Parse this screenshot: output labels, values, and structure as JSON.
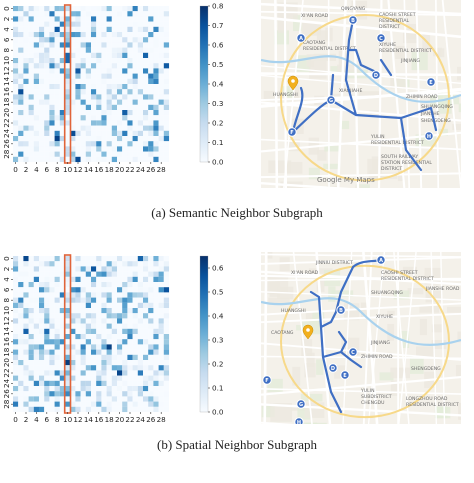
{
  "chart_data": [
    {
      "type": "heatmap",
      "panel": "a",
      "x_ticks": [
        "0",
        "2",
        "4",
        "6",
        "8",
        "10",
        "12",
        "14",
        "16",
        "18",
        "20",
        "22",
        "24",
        "26",
        "28"
      ],
      "y_ticks": [
        "0",
        "2",
        "4",
        "6",
        "8",
        "10",
        "12",
        "14",
        "16",
        "18",
        "20",
        "22",
        "24",
        "26",
        "28"
      ],
      "colorbar_ticks": [
        "0.0",
        "0.1",
        "0.2",
        "0.3",
        "0.4",
        "0.5",
        "0.6",
        "0.7",
        "0.8"
      ],
      "vmin": 0.0,
      "vmax": 0.8,
      "highlight_column": 10,
      "size": 30,
      "seed": 17,
      "density": 0.42,
      "column_boost": 0.35,
      "accent": "#e0643a"
    },
    {
      "type": "heatmap",
      "panel": "b",
      "x_ticks": [
        "0",
        "2",
        "4",
        "6",
        "8",
        "10",
        "12",
        "14",
        "16",
        "18",
        "20",
        "22",
        "24",
        "26",
        "28"
      ],
      "y_ticks": [
        "0",
        "2",
        "4",
        "6",
        "8",
        "10",
        "12",
        "14",
        "16",
        "18",
        "20",
        "22",
        "24",
        "26",
        "28"
      ],
      "colorbar_ticks": [
        "0.0",
        "0.1",
        "0.2",
        "0.3",
        "0.4",
        "0.5",
        "0.6"
      ],
      "vmin": 0.0,
      "vmax": 0.65,
      "highlight_column": 10,
      "size": 30,
      "seed": 91,
      "density": 0.55,
      "column_boost": 0.25,
      "accent": "#e0643a"
    }
  ],
  "maps": {
    "a": {
      "labels": [
        "QINGYANG",
        "XI'AN ROAD",
        "CAOSHI STREET",
        "RESIDENTIAL",
        "DISTRICT",
        "XIYUHE",
        "RESIDENTIAL DISTRICT",
        "JINJIANG",
        "CAOTANG",
        "RESIDENTIAL DISTRICT",
        "HUANGSHI",
        "XIAOJIAHE",
        "ZHIMIN ROAD",
        "SHUANGQING",
        "JIANSHE",
        "SHENGDENG",
        "YULIN",
        "RESIDENTIAL DISTRICT",
        "SOUTH RAILWAY",
        "STATION RESIDENTIAL",
        "DISTRICT",
        "Google My Maps"
      ],
      "nodes": [
        "A",
        "B",
        "C",
        "D",
        "E",
        "F",
        "G",
        "H"
      ]
    },
    "b": {
      "labels": [
        "JINNIU DISTRICT",
        "XI'AN ROAD",
        "CAOSHI STREET",
        "RESIDENTIAL DISTRICT",
        "JIANSHE ROAD",
        "SHUANGQING",
        "HUANGSHI",
        "XIYUHE",
        "CAOTANG",
        "JINJIANG",
        "ZHIMIN ROAD",
        "SHENGDENG",
        "YULIN",
        "SUBDISTRICT",
        "CHENGDU",
        "LONGZHOU ROAD",
        "RESIDENTIAL DISTRICT"
      ],
      "nodes": [
        "A",
        "B",
        "C",
        "D",
        "E",
        "F",
        "G",
        "H"
      ]
    }
  },
  "captions": {
    "a": "(a)  Semantic Neighbor Subgraph",
    "b": "(b)  Spatial Neighbor Subgraph"
  },
  "colors": {
    "route": "#3f6fc4",
    "pin": "#f2b01e",
    "cell_max": "#08306b"
  }
}
